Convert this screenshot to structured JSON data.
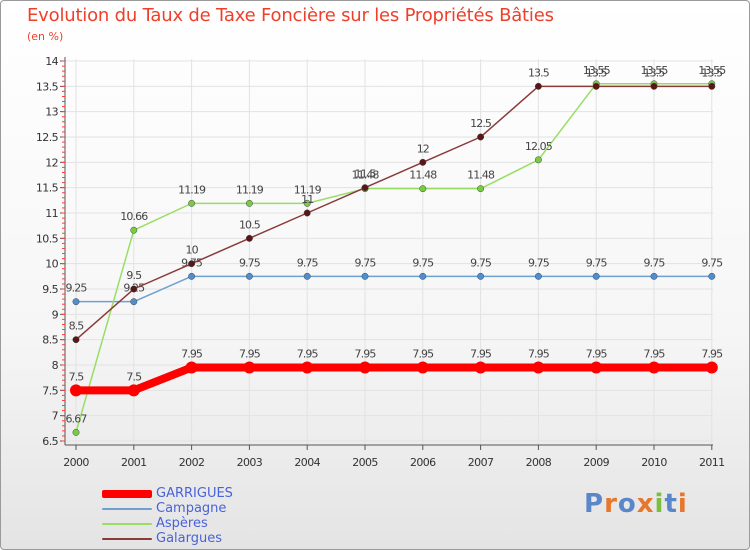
{
  "title": "Evolution du Taux de Taxe Foncière sur les Propriétés Bâties",
  "unit": "(en %)",
  "brand": {
    "text": "Proxiti",
    "letters": [
      "P",
      "r",
      "o",
      "x",
      "i",
      "t",
      "i"
    ],
    "colors": [
      "#5b87c9",
      "#e8762b",
      "#5b87c9",
      "#e8762b",
      "#7abf3e",
      "#5b87c9",
      "#e8762b"
    ]
  },
  "chart_data": {
    "type": "line",
    "title": "Evolution du Taux de Taxe Foncière sur les Propriétés Bâties",
    "ylabel": "(en %)",
    "xlabel": "",
    "categories": [
      "2000",
      "2001",
      "2002",
      "2003",
      "2004",
      "2005",
      "2006",
      "2007",
      "2008",
      "2009",
      "2010",
      "2011"
    ],
    "ylim": [
      6.5,
      14
    ],
    "yticks": [
      6.5,
      7,
      7.5,
      8,
      8.5,
      9,
      9.5,
      10,
      10.5,
      11,
      11.5,
      12,
      12.5,
      13,
      13.5,
      14
    ],
    "ytick_labels": [
      "6.5",
      "7",
      "7.5",
      "8",
      "8.5",
      "9",
      "9.5",
      "10",
      "10.5",
      "11",
      "11.5",
      "12",
      "12.5",
      "13",
      "13.5",
      "14"
    ],
    "series": [
      {
        "name": "GARRIGUES",
        "color": "#ff0000",
        "marker_color": "#ff0000",
        "values": [
          7.5,
          7.5,
          7.95,
          7.95,
          7.95,
          7.95,
          7.95,
          7.95,
          7.95,
          7.95,
          7.95,
          7.95
        ],
        "labels": [
          "7.5",
          "7.5",
          "7.95",
          "7.95",
          "7.95",
          "7.95",
          "7.95",
          "7.95",
          "7.95",
          "7.95",
          "7.95",
          "7.95"
        ]
      },
      {
        "name": "Campagne",
        "color": "#6fa0d0",
        "marker_color": "#4f8fd0",
        "values": [
          9.25,
          9.25,
          9.75,
          9.75,
          9.75,
          9.75,
          9.75,
          9.75,
          9.75,
          9.75,
          9.75,
          9.75
        ],
        "labels": [
          "9.25",
          "9.25",
          "9.75",
          "9.75",
          "9.75",
          "9.75",
          "9.75",
          "9.75",
          "9.75",
          "9.75",
          "9.75",
          "9.75"
        ]
      },
      {
        "name": "Aspères",
        "color": "#99dd66",
        "marker_color": "#77cc44",
        "values": [
          6.67,
          10.66,
          11.19,
          11.19,
          11.19,
          11.48,
          11.48,
          11.48,
          12.05,
          13.55,
          13.55,
          13.55
        ],
        "labels": [
          "6.67",
          "10.66",
          "11.19",
          "11.19",
          "11.19",
          "11.48",
          "11.48",
          "11.48",
          "12.05",
          "13.55",
          "13.55",
          "13.55"
        ]
      },
      {
        "name": "Galargues",
        "color": "#8b3a3a",
        "marker_color": "#5a1515",
        "values": [
          8.5,
          9.5,
          10,
          10.5,
          11,
          11.5,
          12,
          12.5,
          13.5,
          13.5,
          13.5,
          13.5
        ],
        "labels": [
          "8.5",
          "9.5",
          "10",
          "10.5",
          "11",
          "11.5",
          "12",
          "12.5",
          "13.5",
          "13.5",
          "13.5",
          "13.5"
        ]
      }
    ]
  }
}
